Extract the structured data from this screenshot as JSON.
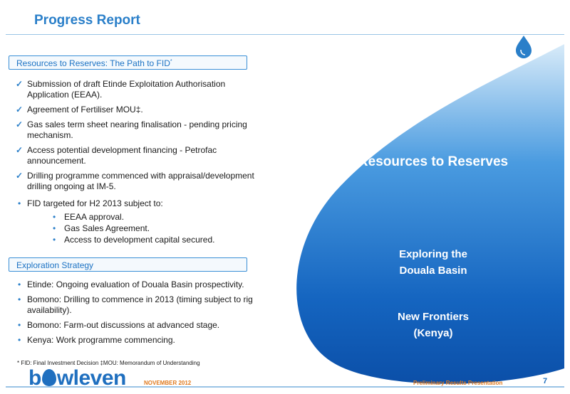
{
  "header": {
    "title": "Progress Report"
  },
  "section1": {
    "title": "Resources to Reserves: The Path to FID",
    "title_sup": "*",
    "checks": [
      "Submission of draft Etinde Exploitation Authorisation Application (EEAA).",
      "Agreement of Fertiliser MOU‡.",
      "Gas sales term sheet nearing finalisation - pending pricing mechanism.",
      "Access potential development financing - Petrofac announcement.",
      "Drilling programme commenced with appraisal/development drilling ongoing at IM-5."
    ],
    "fid": "FID targeted for H2 2013 subject to:",
    "fid_subs": [
      "EEAA approval.",
      "Gas Sales Agreement.",
      "Access to development capital secured."
    ]
  },
  "section2": {
    "title": "Exploration Strategy",
    "items": [
      "Etinde: Ongoing evaluation of Douala Basin prospectivity.",
      "Bomono: Drilling to commence in 2013 (timing subject to rig availability).",
      "Bomono: Farm-out discussions at advanced stage.",
      "Kenya: Work programme commencing."
    ]
  },
  "footnote": "* FID: Final Investment Decision  ‡MOU: Memorandum of Understanding",
  "drop": {
    "title": "Resources to Reserves",
    "sub1_line1": "Exploring the",
    "sub1_line2": "Douala Basin",
    "sub2_line1": "New Frontiers",
    "sub2_line2": "(Kenya)"
  },
  "footer": {
    "logo_pre": "b",
    "logo_post": "wleven",
    "date": "NOVEMBER 2012",
    "presentation": "Preliminary Results Presentation",
    "page": "7"
  },
  "colors": {
    "accent": "#2a7fc9",
    "drop_top": "#cfe5f7",
    "drop_bottom": "#0b4fa8",
    "footer_text": "#e07a1f"
  }
}
